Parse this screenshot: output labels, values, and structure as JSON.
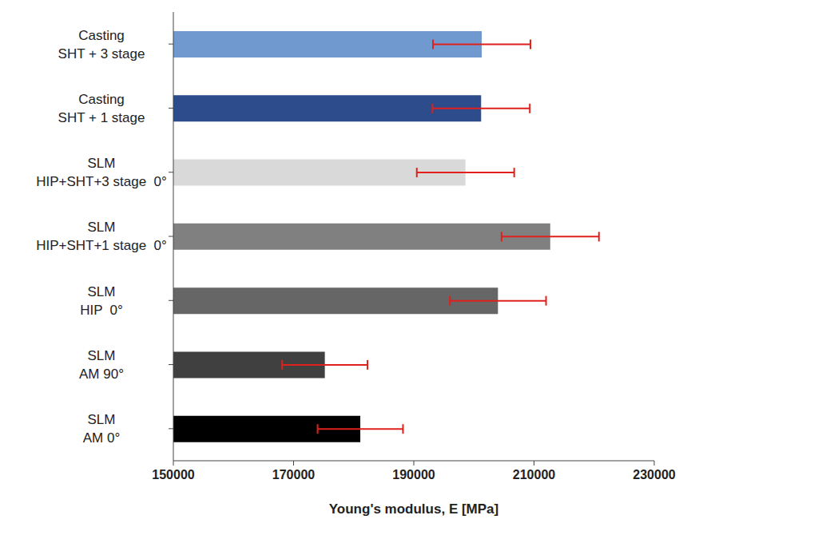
{
  "chart_data": {
    "type": "bar",
    "orientation": "horizontal",
    "x_label": "Young's modulus, E [MPa]",
    "categories": [
      "Casting\nSHT + 3 stage",
      "Casting\nSHT + 1 stage",
      "SLM\nHIP+SHT+3 stage  0°",
      "SLM\nHIP+SHT+1 stage  0°",
      "SLM\nHIP  0°",
      "SLM\nAM 90°",
      "SLM\nAM 0°"
    ],
    "values": [
      201300,
      201200,
      198600,
      212700,
      204000,
      175200,
      181100
    ],
    "errors": [
      8100,
      8100,
      8100,
      8100,
      8000,
      7100,
      7100
    ],
    "colors": [
      "#7099cf",
      "#2c4c8c",
      "#d9d9d9",
      "#808080",
      "#666666",
      "#404040",
      "#000000"
    ],
    "error_color": "#e0201c",
    "xlim": [
      150000,
      230000
    ],
    "xticks": [
      150000,
      170000,
      190000,
      210000,
      230000
    ],
    "grid": false
  }
}
